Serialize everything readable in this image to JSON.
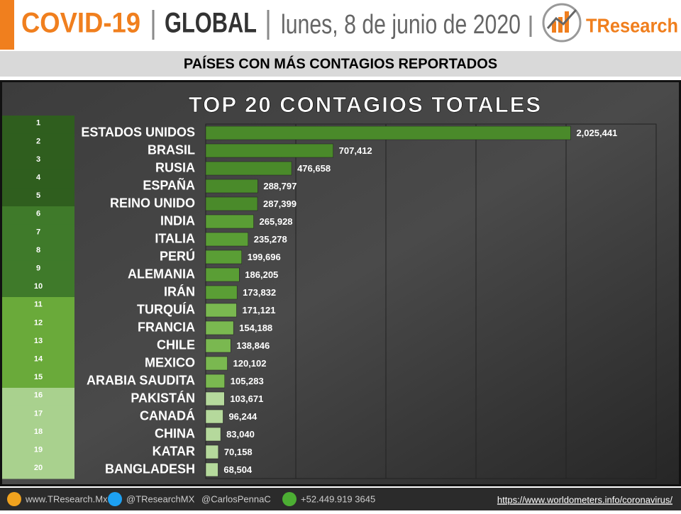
{
  "header": {
    "title": "COVID-19",
    "region": "GLOBAL",
    "date": "lunes, 8 de junio de 2020",
    "brand": "TResearch",
    "subtitle": "PAÍSES CON MÁS CONTAGIOS REPORTADOS"
  },
  "chart_data": {
    "type": "bar",
    "orientation": "horizontal",
    "title": "TOP 20 CONTAGIOS TOTALES",
    "ranks": [
      1,
      2,
      3,
      4,
      5,
      6,
      7,
      8,
      9,
      10,
      11,
      12,
      13,
      14,
      15,
      16,
      17,
      18,
      19,
      20
    ],
    "categories": [
      "ESTADOS UNIDOS",
      "BRASIL",
      "RUSIA",
      "ESPAÑA",
      "REINO UNIDO",
      "INDIA",
      "ITALIA",
      "PERÚ",
      "ALEMANIA",
      "IRÁN",
      "TURQUÍA",
      "FRANCIA",
      "CHILE",
      "MEXICO",
      "ARABIA SAUDITA",
      "PAKISTÁN",
      "CANADÁ",
      "CHINA",
      "KATAR",
      "BANGLADESH"
    ],
    "values": [
      2025441,
      707412,
      476658,
      288797,
      287399,
      265928,
      235278,
      199696,
      186205,
      173832,
      171121,
      154188,
      138846,
      120102,
      105283,
      103671,
      96244,
      83040,
      70158,
      68504
    ],
    "value_labels": [
      "2,025,441",
      "707,412",
      "476,658",
      "288,797",
      "287,399",
      "265,928",
      "235,278",
      "199,696",
      "186,205",
      "173,832",
      "171,121",
      "154,188",
      "138,846",
      "120,102",
      "105,283",
      "103,671",
      "96,244",
      "83,040",
      "70,158",
      "68,504"
    ],
    "bar_colors": [
      "#4a8a2a",
      "#4a8a2a",
      "#4a8a2a",
      "#4a8a2a",
      "#4a8a2a",
      "#5a9e35",
      "#5a9e35",
      "#5a9e35",
      "#5a9e35",
      "#5a9e35",
      "#7ab850",
      "#7ab850",
      "#7ab850",
      "#7ab850",
      "#7ab850",
      "#b5d99c",
      "#b5d99c",
      "#b5d99c",
      "#b5d99c",
      "#b5d99c"
    ],
    "rank_colors": [
      "#2f5e1e",
      "#2f5e1e",
      "#2f5e1e",
      "#2f5e1e",
      "#2f5e1e",
      "#3f7a2a",
      "#3f7a2a",
      "#3f7a2a",
      "#3f7a2a",
      "#3f7a2a",
      "#6aaa3a",
      "#6aaa3a",
      "#6aaa3a",
      "#6aaa3a",
      "#6aaa3a",
      "#a9d18e",
      "#a9d18e",
      "#a9d18e",
      "#a9d18e",
      "#a9d18e"
    ],
    "xlim": [
      0,
      2500000
    ],
    "xticks": [
      0,
      500000,
      1000000,
      1500000,
      2000000,
      2500000
    ],
    "grid": true
  },
  "footer": {
    "web": "www.TResearch.Mx",
    "twitter": "@TResearchMX",
    "twitter2": "@CarlosPennaC",
    "phone": "+52.449.919 3645",
    "source": "https://www.worldometers.info/coronavirus/"
  }
}
